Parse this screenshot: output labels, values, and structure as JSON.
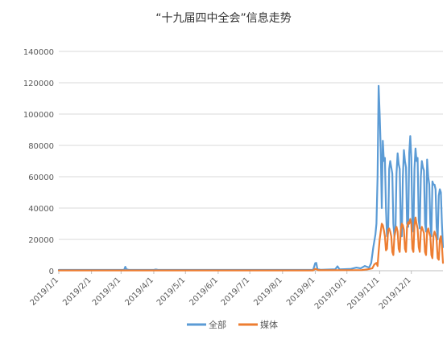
{
  "chart_data": {
    "type": "line",
    "title": "“十九届四中全会”信息走势",
    "xlabel": "",
    "ylabel": "",
    "ylim": [
      0,
      140000
    ],
    "y_ticks": [
      0,
      20000,
      40000,
      60000,
      80000,
      100000,
      120000,
      140000
    ],
    "y_tick_labels": [
      "0",
      "20000",
      "40000",
      "60000",
      "80000",
      "100000",
      "120000",
      "140000"
    ],
    "x_ticks": [
      "2019/1/1",
      "2019/2/1",
      "2019/3/1",
      "2019/4/1",
      "2019/5/1",
      "2019/6/1",
      "2019/7/1",
      "2019/8/1",
      "2019/9/1",
      "2019/10/1",
      "2019/11/1",
      "2019/12/1"
    ],
    "xlim": [
      "2019/1/1",
      "2019/12/31"
    ],
    "grid": "horizontal",
    "legend": "bottom",
    "series": [
      {
        "name": "全部",
        "color": "#5B9BD5",
        "points": [
          [
            "2019/1/1",
            500
          ],
          [
            "2019/2/20",
            500
          ],
          [
            "2019/3/4",
            600
          ],
          [
            "2019/3/5",
            2500
          ],
          [
            "2019/3/6",
            900
          ],
          [
            "2019/3/8",
            600
          ],
          [
            "2019/4/1",
            500
          ],
          [
            "2019/4/3",
            800
          ],
          [
            "2019/4/5",
            500
          ],
          [
            "2019/8/30",
            500
          ],
          [
            "2019/9/1",
            4800
          ],
          [
            "2019/9/2",
            5000
          ],
          [
            "2019/9/3",
            1000
          ],
          [
            "2019/9/6",
            600
          ],
          [
            "2019/9/20",
            900
          ],
          [
            "2019/9/22",
            2800
          ],
          [
            "2019/9/24",
            800
          ],
          [
            "2019/10/5",
            1200
          ],
          [
            "2019/10/10",
            2000
          ],
          [
            "2019/10/14",
            1500
          ],
          [
            "2019/10/18",
            3000
          ],
          [
            "2019/10/22",
            2000
          ],
          [
            "2019/10/24",
            5000
          ],
          [
            "2019/10/26",
            15000
          ],
          [
            "2019/10/28",
            23000
          ],
          [
            "2019/10/29",
            30000
          ],
          [
            "2019/10/30",
            60000
          ],
          [
            "2019/10/31",
            118000
          ],
          [
            "2019/11/1",
            100000
          ],
          [
            "2019/11/2",
            78000
          ],
          [
            "2019/11/3",
            40000
          ],
          [
            "2019/11/4",
            83000
          ],
          [
            "2019/11/5",
            70000
          ],
          [
            "2019/11/6",
            72000
          ],
          [
            "2019/11/7",
            40000
          ],
          [
            "2019/11/8",
            22000
          ],
          [
            "2019/11/9",
            24000
          ],
          [
            "2019/11/10",
            65000
          ],
          [
            "2019/11/11",
            70000
          ],
          [
            "2019/11/12",
            66000
          ],
          [
            "2019/11/13",
            62000
          ],
          [
            "2019/11/14",
            30000
          ],
          [
            "2019/11/15",
            22000
          ],
          [
            "2019/11/16",
            25000
          ],
          [
            "2019/11/17",
            62000
          ],
          [
            "2019/11/18",
            75000
          ],
          [
            "2019/11/19",
            68000
          ],
          [
            "2019/11/20",
            65000
          ],
          [
            "2019/11/21",
            28000
          ],
          [
            "2019/11/22",
            22000
          ],
          [
            "2019/11/23",
            60000
          ],
          [
            "2019/11/24",
            77000
          ],
          [
            "2019/11/25",
            70000
          ],
          [
            "2019/11/26",
            66000
          ],
          [
            "2019/11/27",
            30000
          ],
          [
            "2019/11/28",
            28000
          ],
          [
            "2019/11/29",
            75000
          ],
          [
            "2019/11/30",
            86000
          ],
          [
            "2019/12/1",
            72000
          ],
          [
            "2019/12/2",
            30000
          ],
          [
            "2019/12/3",
            25000
          ],
          [
            "2019/12/4",
            65000
          ],
          [
            "2019/12/5",
            78000
          ],
          [
            "2019/12/6",
            70000
          ],
          [
            "2019/12/7",
            72000
          ],
          [
            "2019/12/8",
            32000
          ],
          [
            "2019/12/9",
            27000
          ],
          [
            "2019/12/10",
            60000
          ],
          [
            "2019/12/11",
            70000
          ],
          [
            "2019/12/12",
            66000
          ],
          [
            "2019/12/13",
            64000
          ],
          [
            "2019/12/14",
            30000
          ],
          [
            "2019/12/15",
            25000
          ],
          [
            "2019/12/16",
            71000
          ],
          [
            "2019/12/17",
            60000
          ],
          [
            "2019/12/18",
            55000
          ],
          [
            "2019/12/19",
            30000
          ],
          [
            "2019/12/20",
            22000
          ],
          [
            "2019/12/21",
            57000
          ],
          [
            "2019/12/22",
            55000
          ],
          [
            "2019/12/23",
            55000
          ],
          [
            "2019/12/24",
            52000
          ],
          [
            "2019/12/25",
            28000
          ],
          [
            "2019/12/26",
            20000
          ],
          [
            "2019/12/27",
            48000
          ],
          [
            "2019/12/28",
            52000
          ],
          [
            "2019/12/29",
            50000
          ],
          [
            "2019/12/30",
            30000
          ],
          [
            "2019/12/31",
            15000
          ]
        ]
      },
      {
        "name": "媒体",
        "color": "#ED7D31",
        "points": [
          [
            "2019/1/1",
            200
          ],
          [
            "2019/8/30",
            200
          ],
          [
            "2019/9/1",
            1200
          ],
          [
            "2019/9/2",
            1000
          ],
          [
            "2019/9/4",
            300
          ],
          [
            "2019/10/15",
            400
          ],
          [
            "2019/10/20",
            800
          ],
          [
            "2019/10/25",
            1500
          ],
          [
            "2019/10/27",
            4000
          ],
          [
            "2019/10/29",
            5000
          ],
          [
            "2019/10/30",
            3000
          ],
          [
            "2019/10/31",
            12000
          ],
          [
            "2019/11/1",
            20000
          ],
          [
            "2019/11/2",
            25000
          ],
          [
            "2019/11/3",
            30000
          ],
          [
            "2019/11/4",
            29000
          ],
          [
            "2019/11/5",
            26000
          ],
          [
            "2019/11/6",
            22000
          ],
          [
            "2019/11/7",
            13000
          ],
          [
            "2019/11/8",
            14000
          ],
          [
            "2019/11/9",
            26000
          ],
          [
            "2019/11/10",
            27000
          ],
          [
            "2019/11/11",
            25000
          ],
          [
            "2019/11/12",
            22000
          ],
          [
            "2019/11/13",
            12000
          ],
          [
            "2019/11/14",
            10000
          ],
          [
            "2019/11/15",
            22000
          ],
          [
            "2019/11/16",
            26000
          ],
          [
            "2019/11/17",
            28000
          ],
          [
            "2019/11/18",
            25000
          ],
          [
            "2019/11/19",
            14000
          ],
          [
            "2019/11/20",
            12000
          ],
          [
            "2019/11/21",
            26000
          ],
          [
            "2019/11/22",
            30000
          ],
          [
            "2019/11/23",
            29000
          ],
          [
            "2019/11/24",
            26000
          ],
          [
            "2019/11/25",
            14000
          ],
          [
            "2019/11/26",
            12000
          ],
          [
            "2019/11/27",
            28000
          ],
          [
            "2019/11/28",
            31000
          ],
          [
            "2019/11/29",
            30000
          ],
          [
            "2019/11/30",
            33000
          ],
          [
            "2019/12/1",
            30000
          ],
          [
            "2019/12/2",
            14000
          ],
          [
            "2019/12/3",
            12000
          ],
          [
            "2019/12/4",
            29000
          ],
          [
            "2019/12/5",
            34000
          ],
          [
            "2019/12/6",
            30000
          ],
          [
            "2019/12/7",
            27000
          ],
          [
            "2019/12/8",
            15000
          ],
          [
            "2019/12/9",
            12000
          ],
          [
            "2019/12/10",
            25000
          ],
          [
            "2019/12/11",
            28000
          ],
          [
            "2019/12/12",
            26000
          ],
          [
            "2019/12/13",
            24000
          ],
          [
            "2019/12/14",
            12000
          ],
          [
            "2019/12/15",
            10000
          ],
          [
            "2019/12/16",
            25000
          ],
          [
            "2019/12/17",
            27000
          ],
          [
            "2019/12/18",
            24000
          ],
          [
            "2019/12/19",
            22000
          ],
          [
            "2019/12/20",
            10000
          ],
          [
            "2019/12/21",
            8000
          ],
          [
            "2019/12/22",
            22000
          ],
          [
            "2019/12/23",
            25000
          ],
          [
            "2019/12/24",
            23000
          ],
          [
            "2019/12/25",
            20000
          ],
          [
            "2019/12/26",
            8000
          ],
          [
            "2019/12/27",
            7000
          ],
          [
            "2019/12/28",
            20000
          ],
          [
            "2019/12/29",
            22000
          ],
          [
            "2019/12/30",
            16000
          ],
          [
            "2019/12/31",
            5000
          ]
        ]
      }
    ]
  }
}
